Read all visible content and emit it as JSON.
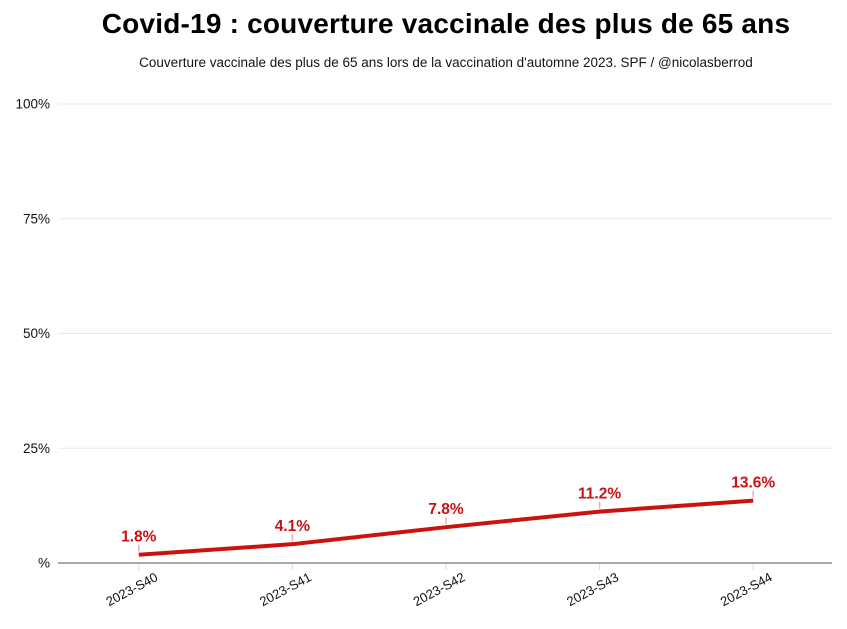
{
  "header": {
    "title": "Covid-19 : couverture vaccinale des plus de 65 ans",
    "subtitle": "Couverture vaccinale des plus de 65 ans lors de la vaccination d'automne 2023. SPF / @nicolasberrod"
  },
  "chart_data": {
    "type": "line",
    "title": "Covid-19 : couverture vaccinale des plus de 65 ans",
    "subtitle": "Couverture vaccinale des plus de 65 ans lors de la vaccination d'automne 2023. SPF / @nicolasberrod",
    "categories": [
      "2023-S40",
      "2023-S41",
      "2023-S42",
      "2023-S43",
      "2023-S44"
    ],
    "series": [
      {
        "name": "Couverture vaccinale des plus de 65 ans",
        "values": [
          1.8,
          4.1,
          7.8,
          11.2,
          13.6
        ],
        "color": "#cc1111"
      }
    ],
    "data_labels": [
      "1.8%",
      "4.1%",
      "7.8%",
      "11.2%",
      "13.6%"
    ],
    "xlabel": "",
    "ylabel": "",
    "ylim": [
      0,
      100
    ],
    "yticks": [
      {
        "value": 0,
        "label": "%"
      },
      {
        "value": 25,
        "label": "25%"
      },
      {
        "value": 50,
        "label": "50%"
      },
      {
        "value": 75,
        "label": "75%"
      },
      {
        "value": 100,
        "label": "100%"
      }
    ],
    "grid": true,
    "legend_position": "none",
    "colors": {
      "line": "#cc1111",
      "data_label": "#cc1111",
      "leader_line": "rgba(204,17,17,0.35)",
      "grid": "#e8e8e8",
      "axis": "#a9a9a9",
      "x_tick": "#d9d9d9",
      "tick_text": "#111111",
      "background": "#ffffff"
    }
  }
}
